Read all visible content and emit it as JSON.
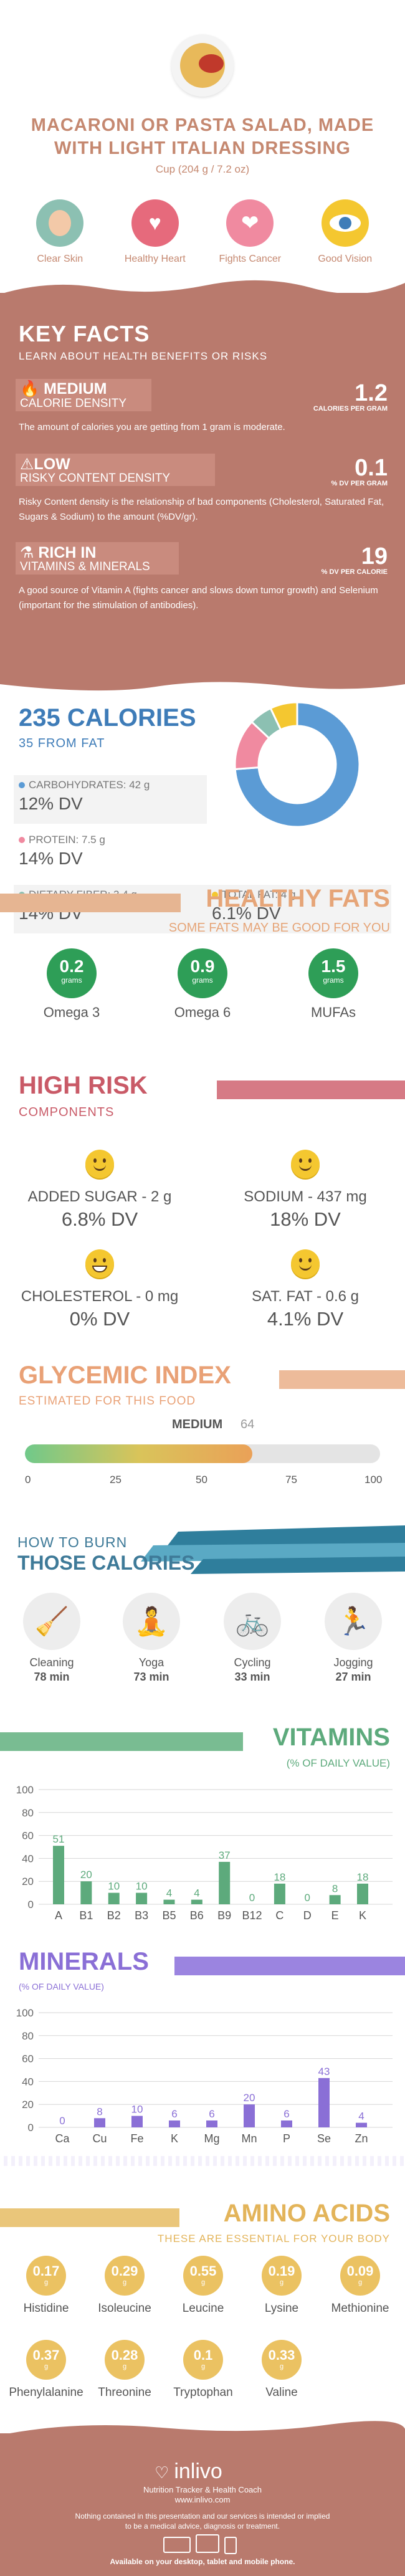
{
  "header": {
    "title": "MACARONI OR PASTA SALAD, MADE WITH LIGHT ITALIAN DRESSING",
    "serving": "Cup (204 g / 7.2 oz)",
    "benefits": [
      {
        "label": "Clear Skin",
        "icon": "face-icon",
        "color": "#8cc0b2"
      },
      {
        "label": "Healthy Heart",
        "icon": "heart-pulse-icon",
        "color": "#e66a7c"
      },
      {
        "label": "Fights Cancer",
        "icon": "ribbon-icon",
        "color": "#f08aa0"
      },
      {
        "label": "Good Vision",
        "icon": "eye-icon",
        "color": "#f4c730"
      }
    ]
  },
  "key_facts": {
    "title": "KEY FACTS",
    "subtitle": "LEARN ABOUT HEALTH BENEFITS OR RISKS",
    "items": [
      {
        "level": "MEDIUM",
        "label": "CALORIE DENSITY",
        "value": "1.2",
        "unit": "CALORIES PER GRAM",
        "desc": "The amount of calories you are getting from 1 gram is moderate.",
        "icon": "flame-icon"
      },
      {
        "level": "LOW",
        "label": "RISKY CONTENT DENSITY",
        "value": "0.1",
        "unit": "% DV PER GRAM",
        "desc": "Risky Content density is the relationship of bad components (Cholesterol, Saturated Fat, Sugars & Sodium) to the amount (%DV/gr).",
        "icon": "warning-icon"
      },
      {
        "level": "RICH IN",
        "label": "VITAMINS & MINERALS",
        "value": "19",
        "unit": "% DV PER CALORIE",
        "desc": "A good source of Vitamin A (fights cancer and slows down tumor growth) and Selenium (important for the stimulation of antibodies).",
        "icon": "flask-icon"
      }
    ]
  },
  "calories": {
    "title": "235 CALORIES",
    "subtitle": "35 FROM FAT",
    "nutrients": [
      {
        "label": "CARBOHYDRATES: 42 g",
        "dv": "12% DV",
        "color": "#5b9bd5"
      },
      {
        "label": "PROTEIN: 7.5 g",
        "dv": "14% DV",
        "color": "#f08aa0"
      },
      {
        "label": "DIETARY FIBER: 3.4 g",
        "dv": "14% DV",
        "color": "#8cc0b2"
      },
      {
        "label": "TOTAL FAT: 4 g",
        "dv": "6.1% DV",
        "color": "#f4c730"
      }
    ],
    "donut": [
      {
        "value": 42,
        "color": "#5b9bd5"
      },
      {
        "value": 7.5,
        "color": "#f08aa0"
      },
      {
        "value": 3.4,
        "color": "#8cc0b2"
      },
      {
        "value": 4,
        "color": "#f4c730"
      }
    ]
  },
  "healthy_fats": {
    "title": "HEALTHY FATS",
    "subtitle": "SOME FATS MAY BE GOOD FOR YOU",
    "items": [
      {
        "value": "0.2",
        "unit": "grams",
        "label": "Omega 3"
      },
      {
        "value": "0.9",
        "unit": "grams",
        "label": "Omega 6"
      },
      {
        "value": "1.5",
        "unit": "grams",
        "label": "MUFAs"
      }
    ]
  },
  "high_risk": {
    "title": "HIGH RISK",
    "subtitle": "COMPONENTS",
    "items": [
      {
        "label": "ADDED SUGAR - 2 g",
        "dv": "6.8% DV",
        "icon": "smiley-icon"
      },
      {
        "label": "SODIUM - 437 mg",
        "dv": "18% DV",
        "icon": "smiley-icon"
      },
      {
        "label": "CHOLESTEROL - 0 mg",
        "dv": "0% DV",
        "icon": "grin-icon"
      },
      {
        "label": "SAT. FAT - 0.6 g",
        "dv": "4.1% DV",
        "icon": "smiley-icon"
      }
    ]
  },
  "glycemic": {
    "title": "GLYCEMIC INDEX",
    "subtitle": "ESTIMATED FOR THIS FOOD",
    "level": "MEDIUM",
    "value": "64",
    "fraction": 0.64,
    "ticks": [
      "0",
      "25",
      "50",
      "75",
      "100"
    ]
  },
  "burn": {
    "subtitle": "HOW TO BURN",
    "title": "THOSE CALORIES",
    "activities": [
      {
        "label": "Cleaning",
        "minutes": "78 min",
        "icon": "broom-icon"
      },
      {
        "label": "Yoga",
        "minutes": "73 min",
        "icon": "yoga-icon"
      },
      {
        "label": "Cycling",
        "minutes": "33 min",
        "icon": "bicycle-icon"
      },
      {
        "label": "Jogging",
        "minutes": "27 min",
        "icon": "runner-icon"
      }
    ]
  },
  "vitamins": {
    "title": "VITAMINS",
    "subtitle": "(% OF DAILY VALUE)",
    "color": "#5daa7c",
    "chart_data": {
      "type": "bar",
      "categories": [
        "A",
        "B1",
        "B2",
        "B3",
        "B5",
        "B6",
        "B9",
        "B12",
        "C",
        "D",
        "E",
        "K"
      ],
      "values": [
        51,
        20,
        10,
        10,
        4,
        4,
        37,
        0,
        18,
        0,
        8,
        18
      ],
      "ylim": [
        0,
        100
      ],
      "yticks": [
        "0",
        "20",
        "40",
        "60",
        "80",
        "100"
      ]
    }
  },
  "minerals": {
    "title": "MINERALS",
    "subtitle": "(% OF DAILY VALUE)",
    "color": "#8a6fd6",
    "chart_data": {
      "type": "bar",
      "categories": [
        "Ca",
        "Cu",
        "Fe",
        "K",
        "Mg",
        "Mn",
        "P",
        "Se",
        "Zn"
      ],
      "values": [
        0,
        8,
        10,
        6,
        6,
        20,
        6,
        43,
        4
      ],
      "ylim": [
        0,
        100
      ],
      "yticks": [
        "0",
        "20",
        "40",
        "60",
        "80",
        "100"
      ]
    }
  },
  "amino": {
    "title": "AMINO ACIDS",
    "subtitle": "THESE ARE ESSENTIAL FOR YOUR BODY",
    "items": [
      {
        "value": "0.17",
        "unit": "g",
        "label": "Histidine"
      },
      {
        "value": "0.29",
        "unit": "g",
        "label": "Isoleucine"
      },
      {
        "value": "0.55",
        "unit": "g",
        "label": "Leucine"
      },
      {
        "value": "0.19",
        "unit": "g",
        "label": "Lysine"
      },
      {
        "value": "0.09",
        "unit": "g",
        "label": "Methionine"
      },
      {
        "value": "0.37",
        "unit": "g",
        "label": "Phenylalanine"
      },
      {
        "value": "0.28",
        "unit": "g",
        "label": "Threonine"
      },
      {
        "value": "0.1",
        "unit": "g",
        "label": "Tryptophan"
      },
      {
        "value": "0.33",
        "unit": "g",
        "label": "Valine"
      }
    ]
  },
  "footer": {
    "logo": "inlivo",
    "tagline": "Nutrition Tracker & Health Coach",
    "url": "www.inlivo.com",
    "disclaimer": "Nothing contained in this presentation and our services is intended or implied to be a medical advice, diagnosis or treatment.",
    "platforms": "Available on your desktop, tablet and mobile phone."
  }
}
